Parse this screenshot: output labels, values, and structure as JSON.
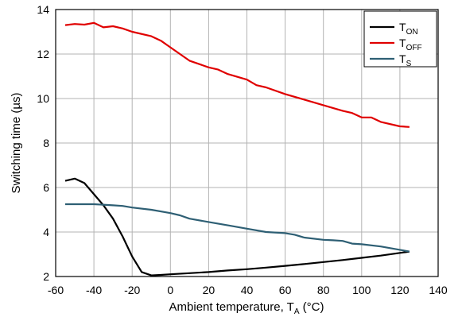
{
  "chart_data": {
    "type": "line",
    "xlabel": {
      "main": "Ambient temperature, T",
      "sub": "A",
      "unit": " (°C)"
    },
    "ylabel": "Switching time (µs)",
    "xlim": [
      -60,
      140
    ],
    "ylim": [
      2,
      14
    ],
    "x_ticks": [
      -60,
      -40,
      -20,
      0,
      20,
      40,
      60,
      80,
      100,
      120,
      140
    ],
    "y_ticks": [
      2,
      4,
      6,
      8,
      10,
      12,
      14
    ],
    "grid": true,
    "legend_position": "top-right",
    "series": [
      {
        "name": "TON",
        "legend": {
          "main": "T",
          "sub": "ON"
        },
        "color": "#000000",
        "points": [
          [
            -55,
            6.3
          ],
          [
            -50,
            6.4
          ],
          [
            -45,
            6.2
          ],
          [
            -40,
            5.7
          ],
          [
            -35,
            5.2
          ],
          [
            -30,
            4.6
          ],
          [
            -25,
            3.8
          ],
          [
            -20,
            2.9
          ],
          [
            -15,
            2.2
          ],
          [
            -10,
            2.05
          ],
          [
            -5,
            2.07
          ],
          [
            0,
            2.1
          ],
          [
            10,
            2.15
          ],
          [
            20,
            2.2
          ],
          [
            30,
            2.27
          ],
          [
            40,
            2.33
          ],
          [
            50,
            2.4
          ],
          [
            60,
            2.48
          ],
          [
            70,
            2.56
          ],
          [
            80,
            2.65
          ],
          [
            90,
            2.74
          ],
          [
            100,
            2.84
          ],
          [
            110,
            2.94
          ],
          [
            120,
            3.06
          ],
          [
            125,
            3.12
          ]
        ]
      },
      {
        "name": "TOFF",
        "legend": {
          "main": "T",
          "sub": "OFF"
        },
        "color": "#e00000",
        "points": [
          [
            -55,
            13.3
          ],
          [
            -50,
            13.35
          ],
          [
            -45,
            13.32
          ],
          [
            -40,
            13.4
          ],
          [
            -35,
            13.2
          ],
          [
            -30,
            13.25
          ],
          [
            -25,
            13.15
          ],
          [
            -20,
            13.0
          ],
          [
            -10,
            12.8
          ],
          [
            -5,
            12.6
          ],
          [
            0,
            12.3
          ],
          [
            5,
            12.0
          ],
          [
            10,
            11.7
          ],
          [
            20,
            11.4
          ],
          [
            25,
            11.3
          ],
          [
            30,
            11.1
          ],
          [
            40,
            10.85
          ],
          [
            45,
            10.6
          ],
          [
            50,
            10.5
          ],
          [
            60,
            10.2
          ],
          [
            70,
            9.95
          ],
          [
            80,
            9.7
          ],
          [
            90,
            9.45
          ],
          [
            95,
            9.35
          ],
          [
            100,
            9.15
          ],
          [
            105,
            9.15
          ],
          [
            110,
            8.95
          ],
          [
            120,
            8.75
          ],
          [
            125,
            8.72
          ]
        ]
      },
      {
        "name": "TS",
        "legend": {
          "main": "T",
          "sub": "S"
        },
        "color": "#2e5f74",
        "points": [
          [
            -55,
            5.25
          ],
          [
            -50,
            5.25
          ],
          [
            -40,
            5.25
          ],
          [
            -30,
            5.2
          ],
          [
            -25,
            5.17
          ],
          [
            -20,
            5.1
          ],
          [
            -10,
            5.0
          ],
          [
            0,
            4.85
          ],
          [
            5,
            4.75
          ],
          [
            10,
            4.6
          ],
          [
            20,
            4.45
          ],
          [
            30,
            4.3
          ],
          [
            40,
            4.15
          ],
          [
            50,
            4.0
          ],
          [
            60,
            3.95
          ],
          [
            65,
            3.88
          ],
          [
            70,
            3.75
          ],
          [
            80,
            3.65
          ],
          [
            85,
            3.63
          ],
          [
            90,
            3.6
          ],
          [
            95,
            3.48
          ],
          [
            100,
            3.45
          ],
          [
            110,
            3.35
          ],
          [
            120,
            3.2
          ],
          [
            125,
            3.12
          ]
        ]
      }
    ]
  }
}
